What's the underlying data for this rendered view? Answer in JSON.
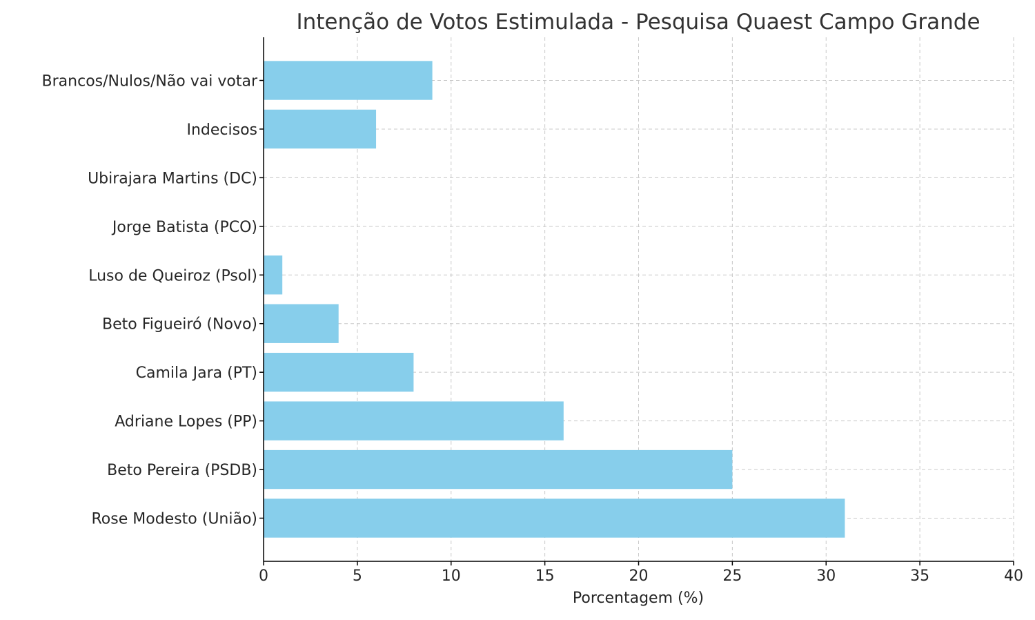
{
  "chart_data": {
    "type": "bar",
    "orientation": "horizontal",
    "title": "Intenção de Votos Estimulada - Pesquisa Quaest Campo Grande",
    "xlabel": "Porcentagem (%)",
    "ylabel": "",
    "categories": [
      "Rose Modesto (União)",
      "Beto Pereira (PSDB)",
      "Adriane Lopes (PP)",
      "Camila Jara (PT)",
      "Beto Figueiró (Novo)",
      "Luso de Queiroz (Psol)",
      "Jorge Batista (PCO)",
      "Ubirajara Martins (DC)",
      "Indecisos",
      "Brancos/Nulos/Não vai votar"
    ],
    "values": [
      31,
      25,
      16,
      8,
      4,
      1,
      0,
      0,
      6,
      9
    ],
    "xlim": [
      0,
      40
    ],
    "xticks": [
      "0",
      "5",
      "10",
      "15",
      "20",
      "25",
      "30",
      "35",
      "40"
    ],
    "grid": true,
    "bar_color": "#87ceeb"
  }
}
